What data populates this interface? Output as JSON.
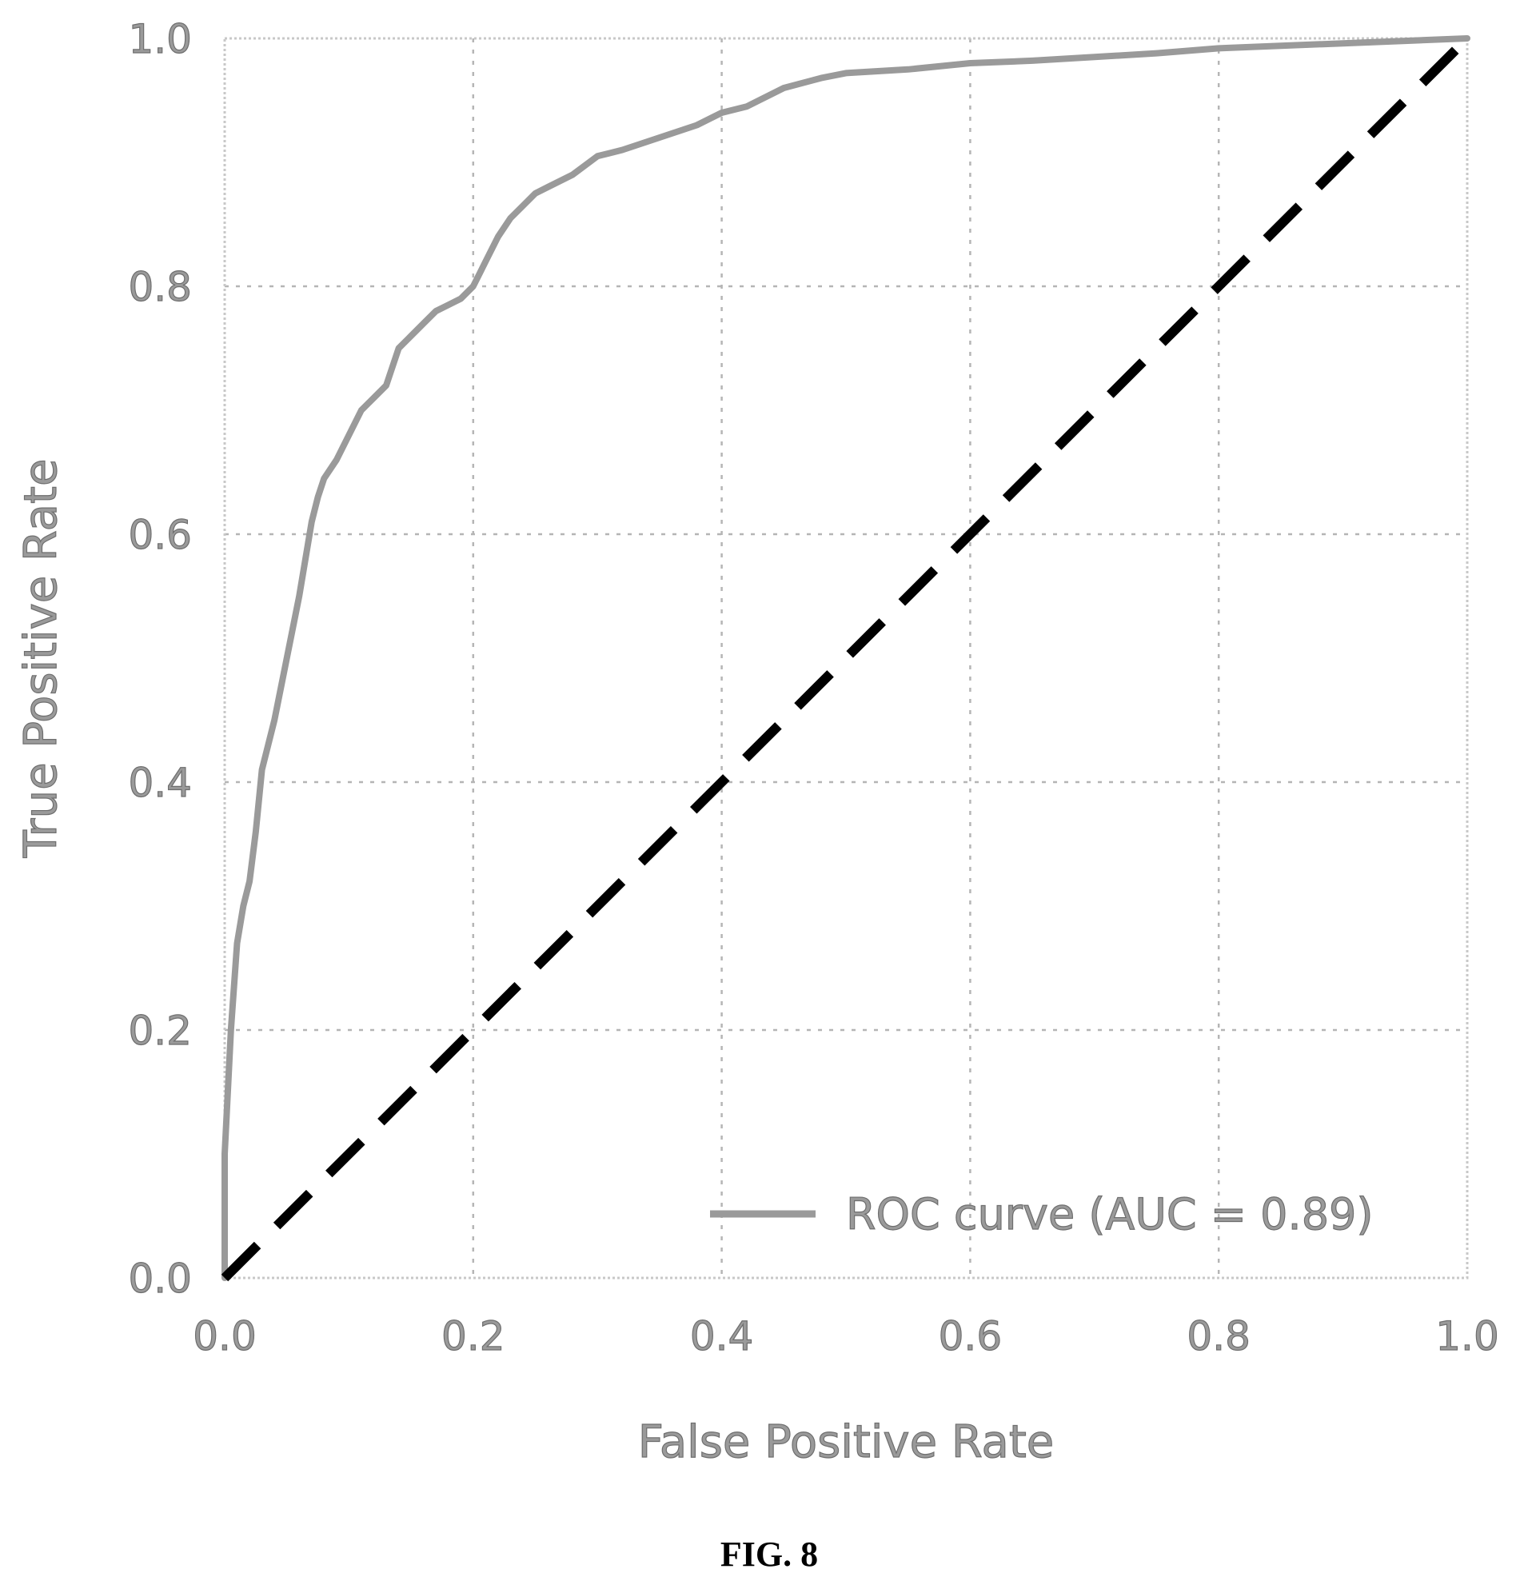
{
  "caption": "FIG. 8",
  "chart_data": {
    "type": "line",
    "title": "",
    "xlabel": "False Positive Rate",
    "ylabel": "True Positive Rate",
    "xlim": [
      0.0,
      1.0
    ],
    "ylim": [
      0.0,
      1.0
    ],
    "xticks": [
      "0.0",
      "0.2",
      "0.4",
      "0.6",
      "0.8",
      "1.0"
    ],
    "yticks": [
      "0.0",
      "0.2",
      "0.4",
      "0.6",
      "0.8",
      "1.0"
    ],
    "grid": true,
    "legend_position": "lower-right",
    "series": [
      {
        "name": "ROC curve (AUC = 0.89)",
        "color": "#9a9a9a",
        "style": "solid",
        "x": [
          0.0,
          0.0,
          0.005,
          0.01,
          0.015,
          0.02,
          0.025,
          0.03,
          0.035,
          0.04,
          0.05,
          0.06,
          0.065,
          0.07,
          0.075,
          0.08,
          0.09,
          0.1,
          0.11,
          0.12,
          0.13,
          0.14,
          0.15,
          0.16,
          0.17,
          0.18,
          0.19,
          0.2,
          0.205,
          0.21,
          0.22,
          0.23,
          0.24,
          0.25,
          0.26,
          0.28,
          0.3,
          0.32,
          0.35,
          0.38,
          0.4,
          0.42,
          0.45,
          0.48,
          0.5,
          0.55,
          0.6,
          0.65,
          0.7,
          0.75,
          0.8,
          0.85,
          0.9,
          0.95,
          1.0
        ],
        "y": [
          0.0,
          0.1,
          0.2,
          0.27,
          0.3,
          0.32,
          0.36,
          0.41,
          0.43,
          0.45,
          0.5,
          0.55,
          0.58,
          0.61,
          0.63,
          0.645,
          0.66,
          0.68,
          0.7,
          0.71,
          0.72,
          0.75,
          0.76,
          0.77,
          0.78,
          0.785,
          0.79,
          0.8,
          0.81,
          0.82,
          0.84,
          0.855,
          0.865,
          0.875,
          0.88,
          0.89,
          0.905,
          0.91,
          0.92,
          0.93,
          0.94,
          0.945,
          0.96,
          0.968,
          0.972,
          0.975,
          0.98,
          0.982,
          0.985,
          0.988,
          0.992,
          0.994,
          0.996,
          0.998,
          1.0
        ]
      },
      {
        "name": "",
        "color": "#000000",
        "style": "dashed",
        "x": [
          0.0,
          1.0
        ],
        "y": [
          0.0,
          1.0
        ]
      }
    ]
  }
}
